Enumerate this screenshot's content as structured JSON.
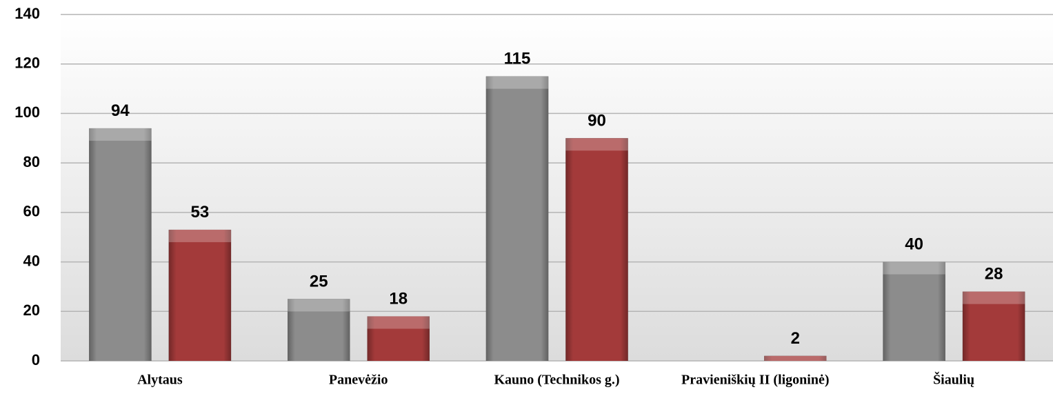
{
  "chart_data": {
    "type": "bar",
    "categories": [
      "Alytaus",
      "Panevėžio",
      "Kauno (Technikos g.)",
      "Pravieniškių II (ligoninė)",
      "Šiaulių"
    ],
    "series": [
      {
        "color": "#8c8c8c",
        "values": [
          94,
          25,
          115,
          null,
          40
        ]
      },
      {
        "color": "#a33a3a",
        "values": [
          53,
          18,
          90,
          2,
          28
        ]
      }
    ],
    "ylim": [
      0,
      140
    ],
    "yticks": [
      0,
      20,
      40,
      60,
      80,
      100,
      120,
      140
    ],
    "grid": true
  }
}
